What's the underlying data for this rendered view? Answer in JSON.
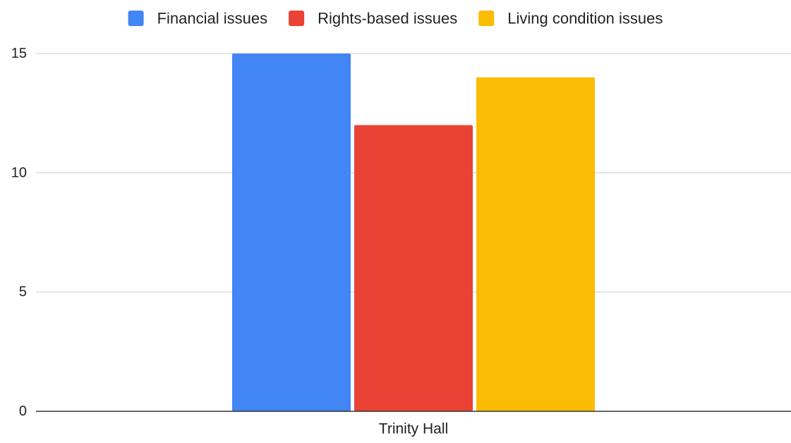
{
  "chart_data": {
    "type": "bar",
    "title": "",
    "xlabel": "",
    "ylabel": "",
    "categories": [
      "Trinity Hall"
    ],
    "series": [
      {
        "name": "Financial issues",
        "values": [
          15
        ],
        "color": "#4285f4"
      },
      {
        "name": "Rights-based issues",
        "values": [
          12
        ],
        "color": "#ea4335"
      },
      {
        "name": "Living condition issues",
        "values": [
          14
        ],
        "color": "#fbbc04"
      }
    ],
    "ylim": [
      0,
      15
    ],
    "yticks": [
      "0",
      "5",
      "10",
      "15"
    ],
    "ytick_values": [
      0,
      5,
      10,
      15
    ],
    "grid": true,
    "legend_position": "top"
  }
}
